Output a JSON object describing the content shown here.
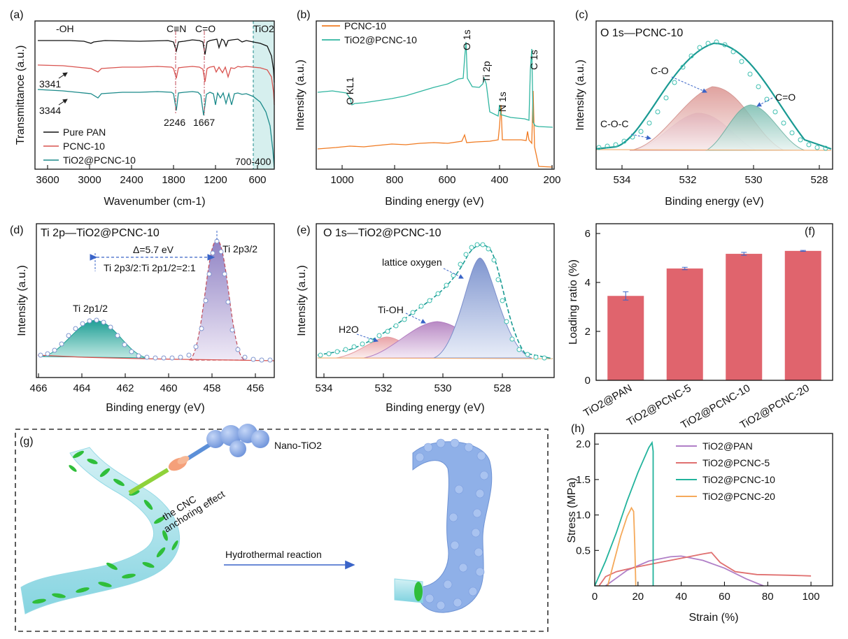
{
  "chart_data": [
    {
      "type": "line",
      "panel": "(a)",
      "xlabel": "Wavenumber (cm-1)",
      "ylabel": "Transmittance (a.u.)",
      "xlim": [
        3800,
        400
      ],
      "x_ticks": [
        "3600",
        "3000",
        "2400",
        "1800",
        "1200",
        "600"
      ],
      "series": [
        {
          "name": "Pure PAN",
          "color": "#111111"
        },
        {
          "name": "PCNC-10",
          "color": "#d9534f"
        },
        {
          "name": "TiO2@PCNC-10",
          "color": "#1b8a8a"
        }
      ],
      "annotations": [
        "-OH",
        "C≡N",
        "C=O",
        "TiO2",
        "3341",
        "3344",
        "2246",
        "1667",
        "700-400"
      ]
    },
    {
      "type": "line",
      "panel": "(b)",
      "xlabel": "Binding energy (eV)",
      "ylabel": "Intensity (a.u.)",
      "xlim": [
        1100,
        200
      ],
      "x_ticks": [
        "1000",
        "800",
        "600",
        "400",
        "200"
      ],
      "series": [
        {
          "name": "PCNC-10",
          "color": "#f07b22"
        },
        {
          "name": "TiO2@PCNC-10",
          "color": "#2fb5a0"
        }
      ],
      "annotations": [
        "O KL1",
        "O 1s",
        "Ti 2p",
        "N 1s",
        "C 1s"
      ]
    },
    {
      "type": "line",
      "panel": "(c)",
      "title": "O 1s—PCNC-10",
      "xlabel": "Binding energy (eV)",
      "ylabel": "Intensity (a.u.)",
      "xlim": [
        535.3,
        527.2
      ],
      "x_ticks": [
        "534",
        "532",
        "530",
        "528"
      ],
      "peaks": [
        {
          "name": "C-O",
          "center": 531.3
        },
        {
          "name": "C=O",
          "center": 530.0
        },
        {
          "name": "C-O-C",
          "center": 532.0
        }
      ]
    },
    {
      "type": "line",
      "panel": "(d)",
      "title": "Ti 2p—TiO2@PCNC-10",
      "xlabel": "Binding energy (eV)",
      "ylabel": "Intensity (a.u.)",
      "xlim": [
        466,
        455
      ],
      "x_ticks": [
        "466",
        "464",
        "462",
        "460",
        "458",
        "456"
      ],
      "peaks": [
        {
          "name": "Ti 2p3/2",
          "center": 457.7
        },
        {
          "name": "Ti 2p1/2",
          "center": 463.4
        }
      ],
      "annotations": [
        "Δ=5.7 eV",
        "Ti 2p3/2:Ti 2p1/2=2:1"
      ]
    },
    {
      "type": "line",
      "panel": "(e)",
      "title": "O 1s—TiO2@PCNC-10",
      "xlabel": "Binding energy (eV)",
      "ylabel": "Intensity (a.u.)",
      "xlim": [
        534.5,
        526.5
      ],
      "x_ticks": [
        "534",
        "532",
        "530",
        "528"
      ],
      "peaks": [
        {
          "name": "lattice oxygen",
          "center": 529.0
        },
        {
          "name": "Ti-OH",
          "center": 530.3
        },
        {
          "name": "H2O",
          "center": 531.8
        }
      ]
    },
    {
      "type": "bar",
      "panel": "(f)",
      "ylabel": "Loading ratio (%)",
      "ylim": [
        0,
        6.4
      ],
      "y_ticks": [
        "0",
        "2",
        "4",
        "6"
      ],
      "categories": [
        "TiO2@PAN",
        "TiO2@PCNC-5",
        "TiO2@PCNC-10",
        "TiO2@PCNC-20"
      ],
      "values": [
        3.45,
        4.57,
        5.17,
        5.29
      ],
      "errors": [
        0.17,
        0.05,
        0.06,
        0.02
      ],
      "color": "#e0646d"
    },
    {
      "type": "line",
      "panel": "(h)",
      "xlabel": "Strain (%)",
      "ylabel": "Stress (MPa)",
      "xlim": [
        0,
        110
      ],
      "ylim": [
        0,
        2.15
      ],
      "x_ticks": [
        "0",
        "20",
        "40",
        "60",
        "80",
        "100"
      ],
      "y_ticks": [
        "0.5",
        "1.0",
        "1.5",
        "2.0"
      ],
      "series": [
        {
          "name": "TiO2@PAN",
          "color": "#b07fc7",
          "x": [
            5,
            15,
            25,
            35,
            40,
            50,
            60,
            70,
            78
          ],
          "y": [
            0,
            0.22,
            0.35,
            0.41,
            0.42,
            0.36,
            0.25,
            0.1,
            0
          ]
        },
        {
          "name": "TiO2@PCNC-5",
          "color": "#e07070",
          "x": [
            2,
            5,
            10,
            20,
            30,
            40,
            50,
            54,
            58,
            65,
            75,
            90,
            100
          ],
          "y": [
            0,
            0.13,
            0.2,
            0.27,
            0.33,
            0.39,
            0.45,
            0.47,
            0.33,
            0.2,
            0.16,
            0.15,
            0.14
          ]
        },
        {
          "name": "TiO2@PCNC-10",
          "color": "#22b39c",
          "x": [
            0,
            5,
            10,
            15,
            20,
            25,
            26.5,
            27,
            27
          ],
          "y": [
            0,
            0.35,
            0.75,
            1.2,
            1.6,
            1.95,
            2.02,
            1.9,
            0
          ]
        },
        {
          "name": "TiO2@PCNC-20",
          "color": "#f5a95a",
          "x": [
            6,
            9,
            12,
            15,
            17,
            18,
            18.5,
            19
          ],
          "y": [
            0,
            0.35,
            0.7,
            0.98,
            1.1,
            1.05,
            0.6,
            0
          ]
        }
      ]
    }
  ],
  "panels": {
    "a": "(a)",
    "b": "(b)",
    "c": "(c)",
    "d": "(d)",
    "e": "(e)",
    "f": "(f)",
    "g": "(g)",
    "h": "(h)"
  },
  "schematic": {
    "label_nano": "Nano-TiO2",
    "label_effect_1": "the CNC",
    "label_effect_2": "anchoring effect",
    "label_reaction": "Hydrothermal reaction"
  }
}
